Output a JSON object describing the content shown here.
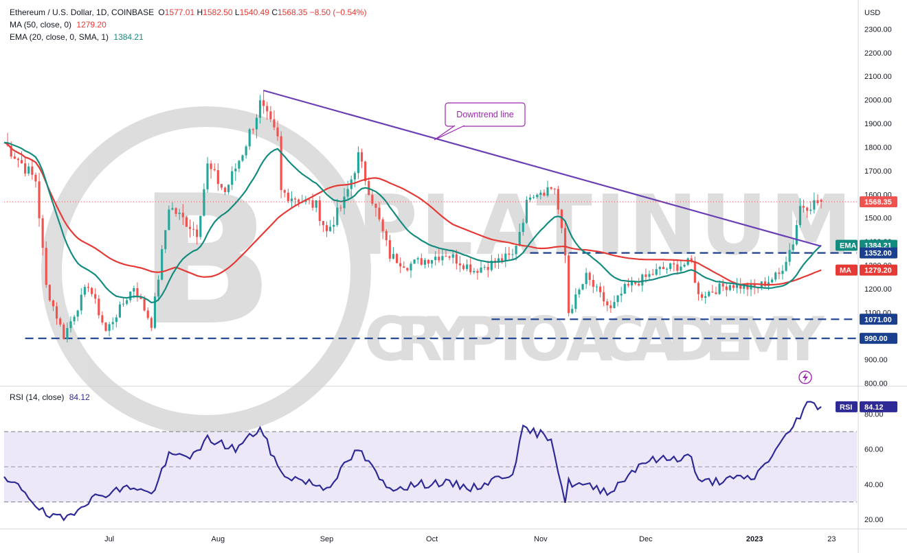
{
  "legend": {
    "symbol": "Ethereum / U.S. Dollar, 1D, COINBASE",
    "o_label": "O",
    "o": "1577.01",
    "h_label": "H",
    "h": "1582.50",
    "l_label": "L",
    "l": "1540.49",
    "c_label": "C",
    "c": "1568.35",
    "change": "−8.50 (−0.54%)",
    "ma_title": "MA (50, close, 0)",
    "ma_value": "1279.20",
    "ema_title": "EMA (20, close, 0, SMA, 1)",
    "ema_value": "1384.21",
    "rsi_title": "RSI (14, close)",
    "rsi_value": "84.12"
  },
  "watermark": {
    "line1": "PLATINUM",
    "line2": "CRYPTO ACADEMY",
    "coin": "B"
  },
  "annotation": {
    "text": "Downtrend line"
  },
  "axis": {
    "currency": "USD"
  },
  "tags": {
    "price": "1568.35",
    "ema_label": "EMA",
    "ema": "1384.21",
    "level1": "1352.00",
    "ma_label": "MA",
    "ma": "1279.20",
    "level2": "1071.00",
    "level3": "990.00",
    "rsi_label": "RSI",
    "rsi": "84.12"
  },
  "colors": {
    "up": "#26a69a",
    "down": "#ef5350",
    "ma": "#e53935",
    "ema": "#138b7e",
    "trendline": "#6a3fb5",
    "levels": "#1a3f8f",
    "rsi": "#2e2a96",
    "rsi_band": "#ede8f7",
    "price_tag": "#ef5350"
  },
  "chart_data": [
    {
      "type": "candlestick",
      "title": "Ethereum / U.S. Dollar, 1D, COINBASE",
      "y_unit": "USD",
      "ylim": [
        790,
        2400
      ],
      "y_ticks": [
        800,
        900,
        1000,
        1100,
        1200,
        1300,
        1400,
        1500,
        1600,
        1700,
        1800,
        1900,
        2000,
        2100,
        2200,
        2300
      ],
      "y_tick_labels": [
        "800.00",
        "900.00",
        "1000.00",
        "1100.00",
        "1200.00",
        "1300.00",
        "1400.00",
        "1500.00",
        "1600.00",
        "1700.00",
        "1800.00",
        "1900.00",
        "2000.00",
        "2100.00",
        "2200.00",
        "2300.00"
      ],
      "x_ticks": [
        "Jul",
        "Aug",
        "Sep",
        "Oct",
        "Nov",
        "Dec",
        "2023",
        "23"
      ],
      "x_range": [
        "2022-06-01",
        "2023-01-29"
      ],
      "last_bar": {
        "date": "2023-01-20",
        "open": 1577.01,
        "high": 1582.5,
        "low": 1540.49,
        "close": 1568.35
      },
      "overlays": [
        {
          "name": "MA (50, close, 0)",
          "last": 1279.2
        },
        {
          "name": "EMA (20, close, 0, SMA, 1)",
          "last": 1384.21
        }
      ],
      "horizontal_levels": [
        1352.0,
        1071.0,
        990.0
      ],
      "trendline": {
        "label": "Downtrend line",
        "from": {
          "date": "2022-08-14",
          "price": 2040
        },
        "to": {
          "date": "2023-01-20",
          "price": 1380
        }
      },
      "ohlc_anchors": [
        {
          "date": "2022-06-01",
          "close": 1820
        },
        {
          "date": "2022-06-10",
          "close": 1660
        },
        {
          "date": "2022-06-13",
          "close": 1210
        },
        {
          "date": "2022-06-18",
          "close": 1000
        },
        {
          "date": "2022-06-25",
          "close": 1220
        },
        {
          "date": "2022-06-30",
          "close": 1020
        },
        {
          "date": "2022-07-08",
          "close": 1210
        },
        {
          "date": "2022-07-13",
          "close": 1050
        },
        {
          "date": "2022-07-18",
          "close": 1550
        },
        {
          "date": "2022-07-26",
          "close": 1440
        },
        {
          "date": "2022-07-29",
          "close": 1720
        },
        {
          "date": "2022-08-03",
          "close": 1610
        },
        {
          "date": "2022-08-08",
          "close": 1780
        },
        {
          "date": "2022-08-13",
          "close": 1980
        },
        {
          "date": "2022-08-18",
          "close": 1830
        },
        {
          "date": "2022-08-19",
          "close": 1610
        },
        {
          "date": "2022-08-29",
          "close": 1550
        },
        {
          "date": "2022-09-01",
          "close": 1440
        },
        {
          "date": "2022-09-06",
          "close": 1570
        },
        {
          "date": "2022-09-10",
          "close": 1760
        },
        {
          "date": "2022-09-14",
          "close": 1580
        },
        {
          "date": "2022-09-19",
          "close": 1340
        },
        {
          "date": "2022-09-24",
          "close": 1300
        },
        {
          "date": "2022-10-05",
          "close": 1350
        },
        {
          "date": "2022-10-13",
          "close": 1280
        },
        {
          "date": "2022-10-24",
          "close": 1340
        },
        {
          "date": "2022-10-29",
          "close": 1610
        },
        {
          "date": "2022-11-05",
          "close": 1630
        },
        {
          "date": "2022-11-08",
          "close": 1340
        },
        {
          "date": "2022-11-09",
          "close": 1100
        },
        {
          "date": "2022-11-14",
          "close": 1250
        },
        {
          "date": "2022-11-21",
          "close": 1110
        },
        {
          "date": "2022-11-25",
          "close": 1200
        },
        {
          "date": "2022-12-05",
          "close": 1280
        },
        {
          "date": "2022-12-14",
          "close": 1310
        },
        {
          "date": "2022-12-16",
          "close": 1170
        },
        {
          "date": "2022-12-25",
          "close": 1220
        },
        {
          "date": "2023-01-01",
          "close": 1200
        },
        {
          "date": "2023-01-08",
          "close": 1260
        },
        {
          "date": "2023-01-12",
          "close": 1400
        },
        {
          "date": "2023-01-14",
          "close": 1550
        },
        {
          "date": "2023-01-20",
          "close": 1568.35
        }
      ]
    },
    {
      "type": "line",
      "title": "RSI (14, close)",
      "ylim": [
        15,
        95
      ],
      "y_ticks": [
        20,
        40,
        60,
        80
      ],
      "y_tick_labels": [
        "20.00",
        "40.00",
        "60.00",
        "80.00"
      ],
      "bands": [
        30,
        50,
        70
      ],
      "last": 84.12,
      "points": [
        {
          "date": "2022-06-01",
          "value": 42
        },
        {
          "date": "2022-06-06",
          "value": 38
        },
        {
          "date": "2022-06-13",
          "value": 22
        },
        {
          "date": "2022-06-18",
          "value": 20
        },
        {
          "date": "2022-06-24",
          "value": 30
        },
        {
          "date": "2022-06-30",
          "value": 35
        },
        {
          "date": "2022-07-08",
          "value": 39
        },
        {
          "date": "2022-07-13",
          "value": 34
        },
        {
          "date": "2022-07-18",
          "value": 56
        },
        {
          "date": "2022-07-26",
          "value": 57
        },
        {
          "date": "2022-07-29",
          "value": 66
        },
        {
          "date": "2022-08-06",
          "value": 60
        },
        {
          "date": "2022-08-13",
          "value": 72
        },
        {
          "date": "2022-08-19",
          "value": 46
        },
        {
          "date": "2022-09-01",
          "value": 38
        },
        {
          "date": "2022-09-10",
          "value": 60
        },
        {
          "date": "2022-09-18",
          "value": 38
        },
        {
          "date": "2022-10-03",
          "value": 41
        },
        {
          "date": "2022-10-13",
          "value": 38
        },
        {
          "date": "2022-10-24",
          "value": 47
        },
        {
          "date": "2022-10-27",
          "value": 71
        },
        {
          "date": "2022-11-04",
          "value": 67
        },
        {
          "date": "2022-11-08",
          "value": 30
        },
        {
          "date": "2022-11-09",
          "value": 41
        },
        {
          "date": "2022-11-21",
          "value": 36
        },
        {
          "date": "2022-11-30",
          "value": 53
        },
        {
          "date": "2022-12-14",
          "value": 56
        },
        {
          "date": "2022-12-16",
          "value": 41
        },
        {
          "date": "2023-01-01",
          "value": 44
        },
        {
          "date": "2023-01-10",
          "value": 67
        },
        {
          "date": "2023-01-16",
          "value": 86
        },
        {
          "date": "2023-01-20",
          "value": 84.12
        }
      ]
    }
  ]
}
